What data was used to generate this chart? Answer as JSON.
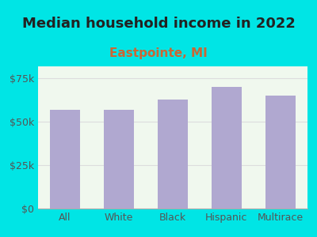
{
  "title": "Median household income in 2022",
  "subtitle": "Eastpointe, MI",
  "categories": [
    "All",
    "White",
    "Black",
    "Hispanic",
    "Multirace"
  ],
  "values": [
    57000,
    57000,
    63000,
    70000,
    65000
  ],
  "bar_color": "#b0a8d0",
  "background_outer": "#00e5e5",
  "background_inner": "#f0f8ee",
  "title_color": "#222222",
  "subtitle_color": "#cc6633",
  "tick_label_color": "#555555",
  "ytick_labels": [
    "$0",
    "$25k",
    "$50k",
    "$75k"
  ],
  "ytick_values": [
    0,
    25000,
    50000,
    75000
  ],
  "ylim": [
    0,
    82000
  ],
  "grid_color": "#dddddd",
  "title_fontsize": 13,
  "subtitle_fontsize": 11,
  "tick_fontsize": 9
}
